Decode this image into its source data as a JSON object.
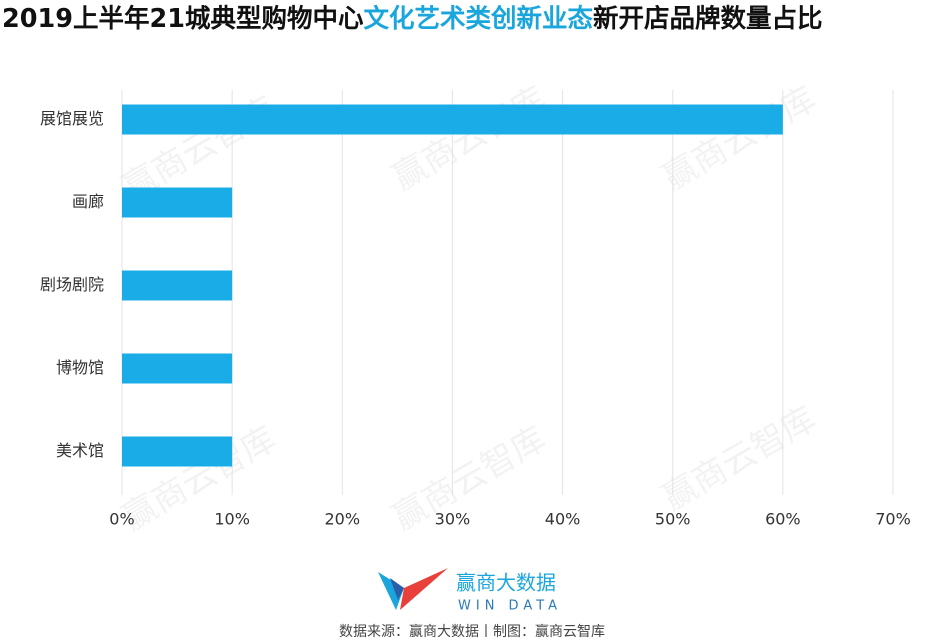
{
  "chart_data": {
    "type": "bar",
    "orientation": "horizontal",
    "title_parts": [
      {
        "text": "2019上半年21城典型购物中心",
        "color": "#111111"
      },
      {
        "text": "文化艺术类创新业态",
        "color": "#1aa6dc"
      },
      {
        "text": "新开店品牌数量占比",
        "color": "#111111"
      }
    ],
    "categories": [
      "展馆展览",
      "画廊",
      "剧场剧院",
      "博物馆",
      "美术馆"
    ],
    "values": [
      60,
      10,
      10,
      10,
      10
    ],
    "color": "#1aace6",
    "xlim": [
      0,
      70
    ],
    "xticks": [
      {
        "value": 0,
        "label": "0%"
      },
      {
        "value": 10,
        "label": "10%"
      },
      {
        "value": 20,
        "label": "20%"
      },
      {
        "value": 30,
        "label": "30%"
      },
      {
        "value": 40,
        "label": "40%"
      },
      {
        "value": 50,
        "label": "50%"
      },
      {
        "value": 60,
        "label": "60%"
      },
      {
        "value": 70,
        "label": "70%"
      }
    ],
    "grid": true,
    "logo_name": "赢商大数据",
    "logo_subtitle": "WIN DATA",
    "source": "数据来源：赢商大数据丨制图：赢商云智库",
    "watermark": "赢商云智库"
  }
}
